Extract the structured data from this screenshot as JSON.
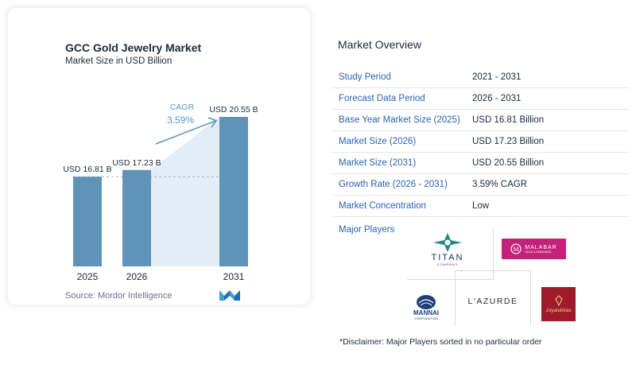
{
  "chart": {
    "title": "GCC Gold Jewelry Market",
    "subtitle": "Market Size in USD Billion",
    "source": "Source:  Mordor Intelligence",
    "cagr_label": "CAGR",
    "cagr_value": "3.59%"
  },
  "chart_data": {
    "type": "bar",
    "title": "GCC Gold Jewelry Market",
    "subtitle": "Market Size in USD Billion",
    "categories": [
      "2025",
      "2026",
      "2031"
    ],
    "values": [
      16.81,
      17.23,
      20.55
    ],
    "value_labels": [
      "USD 16.81 B",
      "USD 17.23 B",
      "USD 20.55 B"
    ],
    "unit": "USD Billion",
    "bar_color": "#5f93b8",
    "annotation": {
      "label": "CAGR",
      "value": "3.59%"
    },
    "xlabel": "",
    "ylabel": ""
  },
  "overview": {
    "title": "Market Overview",
    "rows": [
      {
        "label": "Study Period",
        "value": "2021 - 2031"
      },
      {
        "label": "Forecast Data Period",
        "value": "2026 - 2031"
      },
      {
        "label": "Base Year Market Size (2025)",
        "value": "USD 16.81 Billion"
      },
      {
        "label": "Market Size (2026)",
        "value": "USD 17.23 Billion"
      },
      {
        "label": "Market Size (2031)",
        "value": "USD 20.55 Billion"
      },
      {
        "label": "Growth Rate (2026 - 2031)",
        "value": "3.59% CAGR"
      },
      {
        "label": "Market Concentration",
        "value": "Low"
      }
    ],
    "players_label": "Major Players",
    "players": {
      "titan": "TITAN",
      "titan_sub": "COMPANY",
      "malabar": "MALABAR",
      "malabar_sub": "GOLD & DIAMONDS",
      "mannai": "MANNAI",
      "mannai_sub": "CORPORATION",
      "lazurde": "L'AZURDE",
      "joyalukkas": "Joyalukkas"
    },
    "disclaimer": "*Disclaimer: Major Players sorted in no particular order"
  },
  "colors": {
    "bar": "#5f93b8",
    "accent_label": "#2b62b6",
    "arrow": "#5a98c2",
    "malabar": "#c4227a",
    "joyalukkas": "#9f1a2a"
  }
}
